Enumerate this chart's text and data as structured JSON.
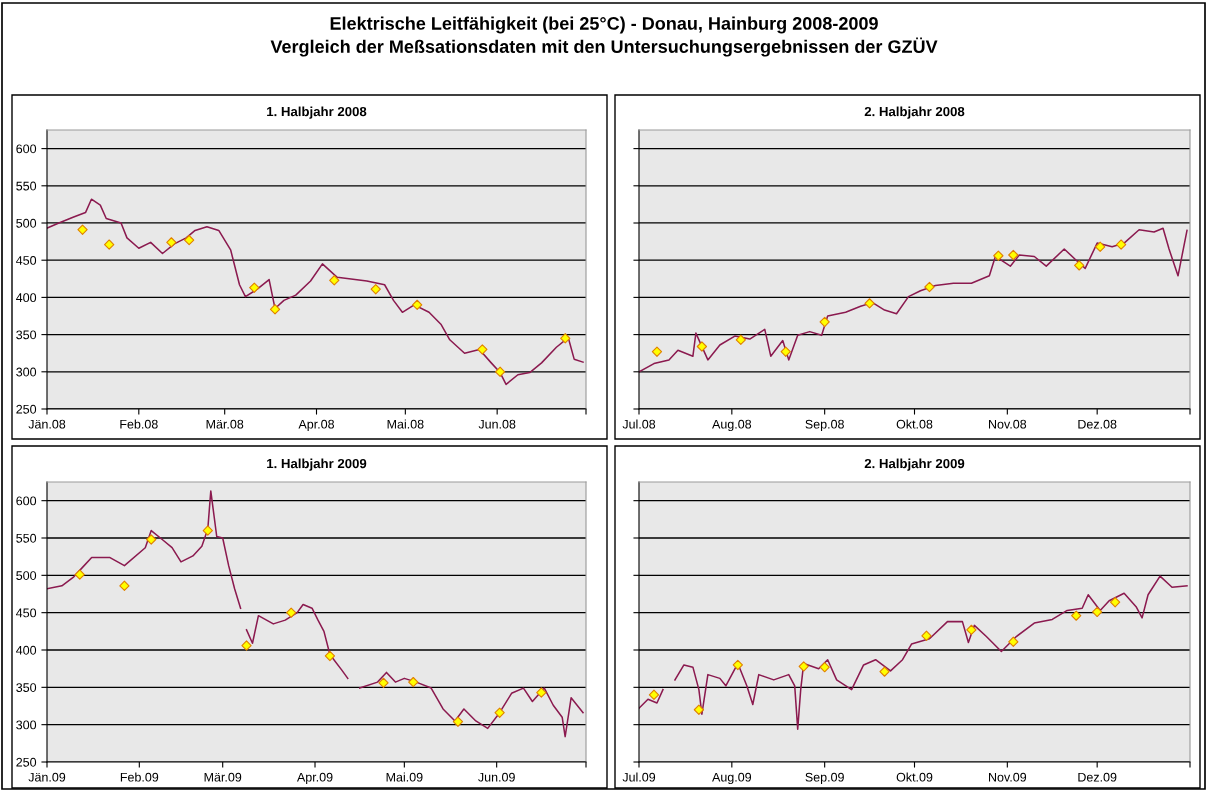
{
  "chart_data": [
    {
      "type": "line",
      "title": "1. Halbjahr 2008",
      "annotations": [
        "Elektrische Leitfähigkeit (bei 25°C) - Donau, Hainburg 2008-2009",
        "Vergleich der Meßsationsdaten mit den Untersuchungsergebnissen der GZÜV"
      ],
      "xlim": [
        "2008-01-01",
        "2008-07-01"
      ],
      "xticks": [
        {
          "value": "2008-01-01",
          "label": "Jän.08"
        },
        {
          "value": "2008-02-01",
          "label": "Feb.08"
        },
        {
          "value": "2008-03-01",
          "label": "Mär.08"
        },
        {
          "value": "2008-04-01",
          "label": "Apr.08"
        },
        {
          "value": "2008-05-01",
          "label": "Mai.08"
        },
        {
          "value": "2008-06-01",
          "label": "Jun.08"
        },
        {
          "value": "2008-07-01",
          "label": null
        }
      ],
      "ylim": [
        250,
        625
      ],
      "yticks": [
        250,
        300,
        350,
        400,
        450,
        500,
        550,
        600
      ],
      "grid": "y",
      "series": [
        {
          "color": "#8b1a4f",
          "x": [
            "2008-01-01",
            "2008-01-05",
            "2008-01-10",
            "2008-01-14",
            "2008-01-16",
            "2008-01-19",
            "2008-01-21",
            "2008-01-26",
            "2008-01-28",
            "2008-02-01",
            "2008-02-05",
            "2008-02-09",
            "2008-02-13",
            "2008-02-17",
            "2008-02-20",
            "2008-02-24",
            "2008-02-28",
            "2008-03-03",
            "2008-03-06",
            "2008-03-08",
            "2008-03-12",
            "2008-03-16",
            "2008-03-18",
            "2008-03-21",
            "2008-03-25",
            "2008-03-30",
            "2008-04-03",
            "2008-04-08",
            "2008-04-12",
            "2008-04-18",
            "2008-04-24",
            "2008-04-27",
            "2008-04-30",
            "2008-05-04",
            "2008-05-09",
            "2008-05-13",
            "2008-05-16",
            "2008-05-21",
            "2008-05-26",
            "2008-05-30",
            "2008-06-02",
            "2008-06-04",
            "2008-06-08",
            "2008-06-12",
            "2008-06-16",
            "2008-06-21",
            "2008-06-25",
            "2008-06-27",
            "2008-06-30"
          ],
          "values": [
            493,
            500,
            508,
            514,
            532,
            524,
            506,
            500,
            480,
            466,
            474,
            459,
            472,
            480,
            490,
            495,
            490,
            464,
            417,
            401,
            411,
            424,
            385,
            396,
            403,
            422,
            445,
            427,
            425,
            422,
            417,
            396,
            380,
            390,
            380,
            364,
            343,
            325,
            330,
            312,
            299,
            283,
            296,
            299,
            312,
            333,
            346,
            317,
            313
          ]
        },
        {
          "type": "scatter",
          "marker": "diamond",
          "color": "#ffff00",
          "x": [
            "2008-01-13",
            "2008-01-22",
            "2008-02-12",
            "2008-02-18",
            "2008-03-11",
            "2008-03-18",
            "2008-04-07",
            "2008-04-21",
            "2008-05-05",
            "2008-05-27",
            "2008-06-02",
            "2008-06-24"
          ],
          "values": [
            491,
            471,
            474,
            477,
            413,
            384,
            423,
            411,
            390,
            330,
            300,
            345
          ]
        }
      ]
    },
    {
      "type": "line",
      "title": "2. Halbjahr 2008",
      "tick_labels": "x",
      "xlim": [
        "2008-07-01",
        "2009-01-01"
      ],
      "xticks": [
        {
          "value": "2008-07-01",
          "label": "Jul.08"
        },
        {
          "value": "2008-08-01",
          "label": "Aug.08"
        },
        {
          "value": "2008-09-01",
          "label": "Sep.08"
        },
        {
          "value": "2008-10-01",
          "label": "Okt.08"
        },
        {
          "value": "2008-11-01",
          "label": "Nov.08"
        },
        {
          "value": "2008-12-01",
          "label": "Dez.08"
        },
        {
          "value": "2009-01-01",
          "label": null
        }
      ],
      "ylim": [
        250,
        625
      ],
      "yticks": [
        250,
        300,
        350,
        400,
        450,
        500,
        550,
        600
      ],
      "grid": "y",
      "series": [
        {
          "color": "#8b1a4f",
          "x": [
            "2008-07-01",
            "2008-07-06",
            "2008-07-11",
            "2008-07-14",
            "2008-07-19",
            "2008-07-20",
            "2008-07-24",
            "2008-07-28",
            "2008-08-02",
            "2008-08-07",
            "2008-08-12",
            "2008-08-14",
            "2008-08-18",
            "2008-08-20",
            "2008-08-23",
            "2008-08-27",
            "2008-08-31",
            "2008-09-02",
            "2008-09-08",
            "2008-09-13",
            "2008-09-17",
            "2008-09-21",
            "2008-09-25",
            "2008-09-29",
            "2008-10-03",
            "2008-10-08",
            "2008-10-14",
            "2008-10-20",
            "2008-10-26",
            "2008-10-28",
            "2008-11-02",
            "2008-11-05",
            "2008-11-10",
            "2008-11-14",
            "2008-11-20",
            "2008-11-24",
            "2008-11-27",
            "2008-12-01",
            "2008-12-06",
            "2008-12-10",
            "2008-12-15",
            "2008-12-20",
            "2008-12-23",
            "2008-12-25",
            "2008-12-28",
            "2008-12-31"
          ],
          "values": [
            300,
            311,
            316,
            329,
            321,
            352,
            316,
            336,
            348,
            344,
            357,
            321,
            342,
            316,
            349,
            354,
            349,
            375,
            380,
            388,
            393,
            383,
            378,
            401,
            409,
            416,
            419,
            419,
            429,
            455,
            442,
            457,
            455,
            442,
            465,
            450,
            439,
            473,
            468,
            473,
            491,
            488,
            493,
            465,
            429,
            490
          ]
        },
        {
          "type": "scatter",
          "marker": "diamond",
          "color": "#ffff00",
          "x": [
            "2008-07-07",
            "2008-07-22",
            "2008-08-04",
            "2008-08-19",
            "2008-09-01",
            "2008-09-16",
            "2008-10-06",
            "2008-10-29",
            "2008-11-03",
            "2008-11-25",
            "2008-12-02",
            "2008-12-09"
          ],
          "values": [
            327,
            334,
            343,
            327,
            367,
            392,
            414,
            456,
            457,
            443,
            468,
            471
          ]
        }
      ]
    },
    {
      "type": "line",
      "title": "1. Halbjahr 2009",
      "xlim": [
        "2009-01-01",
        "2009-07-01"
      ],
      "xticks": [
        {
          "value": "2009-01-01",
          "label": "Jän.09"
        },
        {
          "value": "2009-02-01",
          "label": "Feb.09"
        },
        {
          "value": "2009-03-01",
          "label": "Mär.09"
        },
        {
          "value": "2009-04-01",
          "label": "Apr.09"
        },
        {
          "value": "2009-05-01",
          "label": "Mai.09"
        },
        {
          "value": "2009-06-01",
          "label": "Jun.09"
        },
        {
          "value": "2009-07-01",
          "label": null
        }
      ],
      "ylim": [
        250,
        625
      ],
      "yticks": [
        250,
        300,
        350,
        400,
        450,
        500,
        550,
        600
      ],
      "grid": "y",
      "series": [
        {
          "color": "#8b1a4f",
          "x": [
            "2009-01-01",
            "2009-01-06",
            "2009-01-10",
            "2009-01-13",
            "2009-01-16",
            "2009-01-22",
            "2009-01-27",
            "2009-02-03",
            "2009-02-05",
            "2009-02-09",
            "2009-02-12",
            "2009-02-15",
            "2009-02-19",
            "2009-02-22",
            "2009-02-24",
            "2009-02-25",
            "2009-02-27",
            "2009-03-01",
            "2009-03-03",
            "2009-03-05",
            "2009-03-07",
            "2009-03-08",
            "2009-03-09",
            "2009-03-11",
            "2009-03-13",
            "2009-03-18",
            "2009-03-22",
            "2009-03-26",
            "2009-03-28",
            "2009-03-31",
            "2009-04-02",
            "2009-04-04",
            "2009-04-06",
            "2009-04-10",
            "2009-04-12",
            "2009-04-14",
            "2009-04-16",
            "2009-04-22",
            "2009-04-25",
            "2009-04-28",
            "2009-05-01",
            "2009-05-05",
            "2009-05-10",
            "2009-05-14",
            "2009-05-18",
            "2009-05-21",
            "2009-05-25",
            "2009-05-29",
            "2009-06-02",
            "2009-06-06",
            "2009-06-10",
            "2009-06-13",
            "2009-06-17",
            "2009-06-20",
            "2009-06-23",
            "2009-06-24",
            "2009-06-26",
            "2009-06-30"
          ],
          "values": [
            482,
            486,
            498,
            511,
            524,
            524,
            513,
            537,
            560,
            547,
            537,
            518,
            526,
            539,
            562,
            613,
            552,
            550,
            513,
            482,
            456,
            null,
            427,
            409,
            446,
            435,
            440,
            450,
            461,
            456,
            440,
            425,
            394,
            373,
            362,
            null,
            349,
            357,
            370,
            357,
            362,
            357,
            349,
            321,
            305,
            321,
            305,
            295,
            316,
            342,
            349,
            331,
            349,
            326,
            310,
            284,
            336,
            316
          ]
        },
        {
          "type": "scatter",
          "marker": "diamond",
          "color": "#ffff00",
          "x": [
            "2009-01-12",
            "2009-01-27",
            "2009-02-05",
            "2009-02-24",
            "2009-03-09",
            "2009-03-24",
            "2009-04-06",
            "2009-04-24",
            "2009-05-04",
            "2009-05-19",
            "2009-06-02",
            "2009-06-16"
          ],
          "values": [
            501,
            486,
            548,
            560,
            406,
            450,
            392,
            356,
            357,
            304,
            316,
            343
          ]
        }
      ]
    },
    {
      "type": "line",
      "title": "2. Halbjahr 2009",
      "tick_labels": "x",
      "xlim": [
        "2009-07-01",
        "2010-01-01"
      ],
      "xticks": [
        {
          "value": "2009-07-01",
          "label": "Jul.09"
        },
        {
          "value": "2009-08-01",
          "label": "Aug.09"
        },
        {
          "value": "2009-09-01",
          "label": "Sep.09"
        },
        {
          "value": "2009-10-01",
          "label": "Okt.09"
        },
        {
          "value": "2009-11-01",
          "label": "Nov.09"
        },
        {
          "value": "2009-12-01",
          "label": "Dez.09"
        },
        {
          "value": "2010-01-01",
          "label": null
        }
      ],
      "ylim": [
        250,
        625
      ],
      "yticks": [
        250,
        300,
        350,
        400,
        450,
        500,
        550,
        600
      ],
      "grid": "y",
      "series": [
        {
          "color": "#8b1a4f",
          "x": [
            "2009-07-01",
            "2009-07-04",
            "2009-07-07",
            "2009-07-09",
            "2009-07-11",
            "2009-07-13",
            "2009-07-16",
            "2009-07-19",
            "2009-07-21",
            "2009-07-22",
            "2009-07-24",
            "2009-07-28",
            "2009-07-30",
            "2009-08-03",
            "2009-08-06",
            "2009-08-08",
            "2009-08-10",
            "2009-08-15",
            "2009-08-20",
            "2009-08-22",
            "2009-08-23",
            "2009-08-24",
            "2009-08-25",
            "2009-08-30",
            "2009-09-02",
            "2009-09-05",
            "2009-09-10",
            "2009-09-14",
            "2009-09-18",
            "2009-09-23",
            "2009-09-27",
            "2009-09-30",
            "2009-10-06",
            "2009-10-12",
            "2009-10-17",
            "2009-10-19",
            "2009-10-21",
            "2009-10-25",
            "2009-10-30",
            "2009-11-04",
            "2009-11-10",
            "2009-11-16",
            "2009-11-21",
            "2009-11-26",
            "2009-11-28",
            "2009-12-02",
            "2009-12-05",
            "2009-12-10",
            "2009-12-14",
            "2009-12-16",
            "2009-12-18",
            "2009-12-22",
            "2009-12-26",
            "2009-12-31"
          ],
          "values": [
            322,
            334,
            329,
            347,
            null,
            360,
            380,
            377,
            347,
            314,
            367,
            362,
            352,
            382,
            352,
            327,
            367,
            360,
            367,
            352,
            294,
            347,
            382,
            375,
            387,
            360,
            347,
            380,
            387,
            372,
            387,
            408,
            415,
            438,
            438,
            410,
            433,
            418,
            398,
            418,
            436,
            441,
            453,
            456,
            474,
            453,
            466,
            476,
            458,
            443,
            474,
            499,
            484,
            486
          ]
        },
        {
          "type": "scatter",
          "marker": "diamond",
          "color": "#ffff00",
          "x": [
            "2009-07-06",
            "2009-07-21",
            "2009-08-03",
            "2009-08-25",
            "2009-09-01",
            "2009-09-21",
            "2009-10-05",
            "2009-10-20",
            "2009-11-03",
            "2009-11-24",
            "2009-12-01",
            "2009-12-07"
          ],
          "values": [
            340,
            320,
            380,
            378,
            377,
            371,
            419,
            427,
            411,
            446,
            451,
            464
          ]
        }
      ]
    }
  ]
}
